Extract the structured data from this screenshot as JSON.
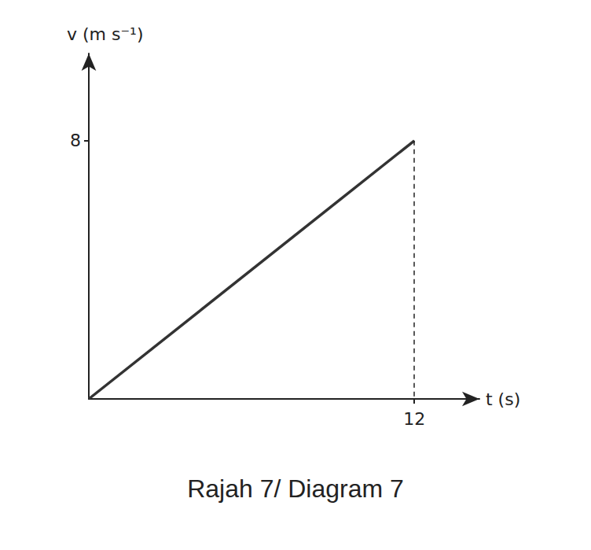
{
  "chart_data": {
    "type": "line",
    "title": "Rajah 7/ Diagram 7",
    "x_label": "t (s)",
    "y_label": "v (m s⁻¹)",
    "x": [
      0,
      12
    ],
    "values": [
      0,
      8
    ],
    "xlim": [
      0,
      14.4
    ],
    "ylim": [
      0,
      10.7
    ],
    "xticks": [
      12
    ],
    "yticks": [
      8
    ],
    "grid": false,
    "color": "#333333",
    "line_style": "solid"
  }
}
